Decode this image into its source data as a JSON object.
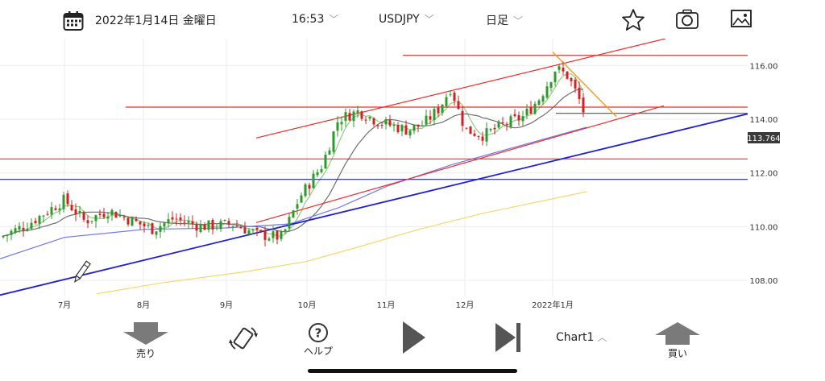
{
  "header": {
    "date": "2022年1月14日 金曜日",
    "time": "16:53",
    "symbol": "USDJPY",
    "timeframe": "日足",
    "icons": [
      "calendar-icon",
      "star-icon",
      "camera-icon",
      "gallery-icon"
    ]
  },
  "chart_data": {
    "type": "candlestick",
    "symbol": "USDJPY",
    "timeframe": "日足",
    "x_labels": [
      "7月",
      "8月",
      "9月",
      "10月",
      "11月",
      "12月",
      "2022年1月"
    ],
    "y_ticks": [
      "116.00",
      "114.00",
      "112.00",
      "110.00",
      "108.00"
    ],
    "ylim": [
      107.4,
      117.0
    ],
    "current_price": "113.764",
    "grid": true,
    "colors": {
      "up": "#2e9a2e",
      "down": "#d32020",
      "ma_short": "#8fcf7a",
      "ma_mid": "#6f6f6f",
      "ma_long": "#6f78e8",
      "ma_very_long": "#f5d76e",
      "resistance": "#ef2b2b",
      "support": "#1f1fd2",
      "trend_orange": "#f29b1d",
      "price_line": "#555555"
    },
    "horizontal_lines": [
      {
        "price": 116.38,
        "color": "resistance"
      },
      {
        "price": 114.45,
        "color": "resistance"
      },
      {
        "price": 112.52,
        "color": "resistance"
      },
      {
        "price": 111.76,
        "color": "support"
      },
      {
        "price": 114.22,
        "color": "price_line"
      }
    ],
    "series_note": "daily USDJPY candles Jun–Jan with moving averages"
  },
  "footer": {
    "sell_label": "売り",
    "help_label": "ヘルプ",
    "chart_label": "Chart1",
    "buy_label": "買い",
    "icons": [
      "sell-arrow-icon",
      "rotate-icon",
      "help-icon",
      "play-icon",
      "skip-forward-icon",
      "buy-arrow-icon"
    ]
  }
}
